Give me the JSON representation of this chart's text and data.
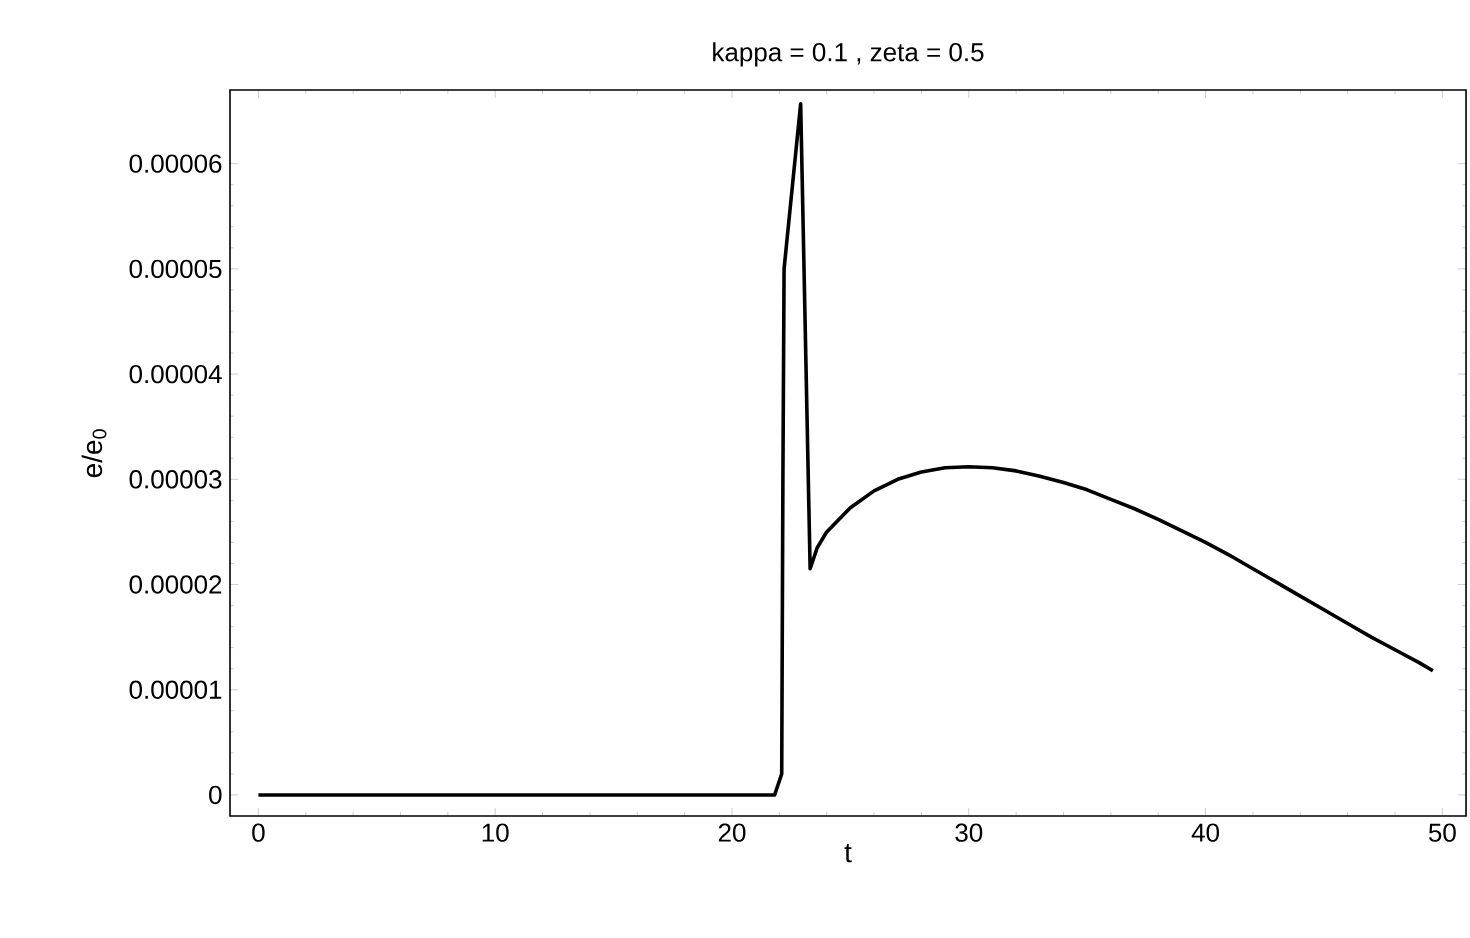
{
  "chart_data": {
    "type": "line",
    "title": "kappa = 0.1 , zeta = 0.5",
    "xlabel": "t",
    "ylabel": "e/e$_{0}$",
    "series": [
      {
        "color": "#000000",
        "x": [
          0,
          5,
          10,
          15,
          20,
          21.8,
          22.1,
          22.15,
          22.2,
          22.9,
          23.3,
          23.6,
          24,
          25,
          26,
          27,
          28,
          29,
          30,
          31,
          32,
          33,
          34,
          35,
          36,
          37,
          38,
          39,
          40,
          41,
          42,
          43,
          44,
          45,
          46,
          47,
          48,
          49,
          49.6
        ],
        "values": [
          0,
          0,
          0,
          0,
          0,
          0,
          2e-06,
          3e-05,
          5e-05,
          6.57e-05,
          2.15e-05,
          2.35e-05,
          2.5e-05,
          2.73e-05,
          2.89e-05,
          3e-05,
          3.07e-05,
          3.11e-05,
          3.12e-05,
          3.11e-05,
          3.08e-05,
          3.03e-05,
          2.97e-05,
          2.9e-05,
          2.81e-05,
          2.72e-05,
          2.62e-05,
          2.51e-05,
          2.4e-05,
          2.28e-05,
          2.15e-05,
          2.02e-05,
          1.89e-05,
          1.76e-05,
          1.63e-05,
          1.5e-05,
          1.38e-05,
          1.26e-05,
          1.18e-05
        ]
      }
    ],
    "xlim": [
      -1.2,
      51
    ],
    "ylim": [
      -2e-06,
      6.7e-05
    ],
    "xticks": [
      0,
      10,
      20,
      30,
      40,
      50
    ],
    "yticks": [
      0,
      {
        "value": 1e-05,
        "label": "0.00001"
      },
      {
        "value": 2e-05,
        "label": "0.00002"
      },
      {
        "value": 3e-05,
        "label": "0.00003"
      },
      {
        "value": 4e-05,
        "label": "0.00004"
      },
      {
        "value": 5e-05,
        "label": "0.00005"
      },
      {
        "value": 6e-05,
        "label": "0.00006"
      }
    ],
    "marker": "none",
    "line_style": "solid"
  }
}
